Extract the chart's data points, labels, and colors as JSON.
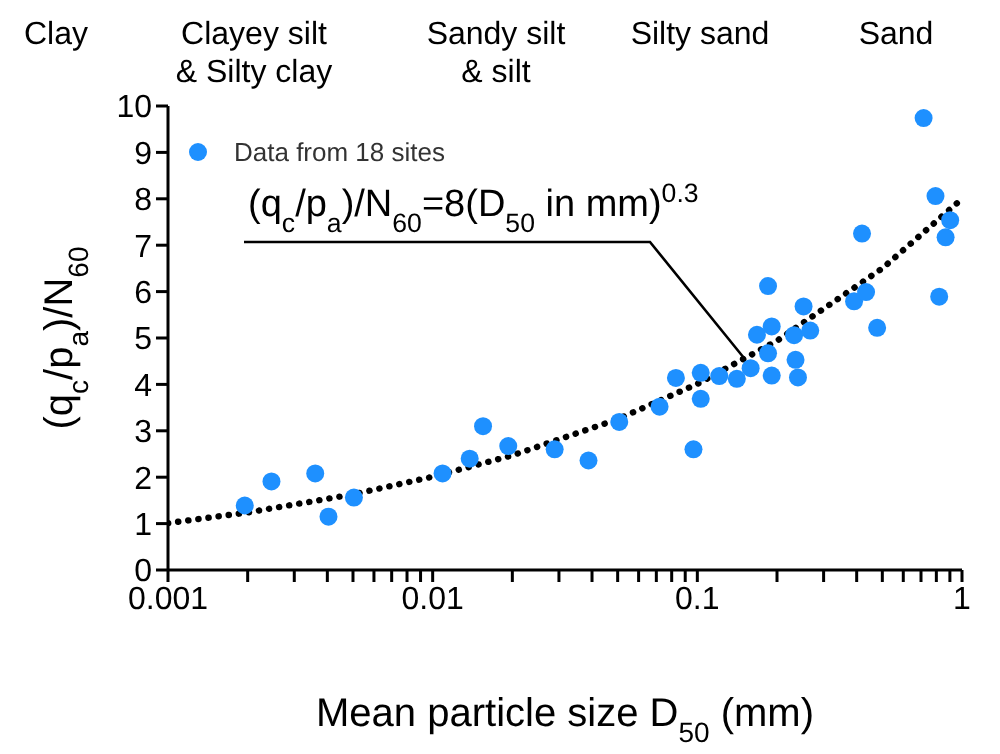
{
  "chart_data": {
    "type": "scatter",
    "xlabel": "Mean particle size D$_{50}$ (mm)",
    "ylabel": "(q$_{c}$/p$_{a}$)/N$_{60}$",
    "log": "x",
    "legend": "top left",
    "grid": false,
    "xlim": [
      0.001,
      1
    ],
    "ylim": [
      0,
      10
    ],
    "xticks": [
      0.001,
      {
        "value": 0.002,
        "label": null
      },
      {
        "value": 0.003,
        "label": null
      },
      {
        "value": 0.004,
        "label": null
      },
      {
        "value": 0.005,
        "label": null
      },
      {
        "value": 0.006,
        "label": null
      },
      {
        "value": 0.007,
        "label": null
      },
      {
        "value": 0.008,
        "label": null
      },
      {
        "value": 0.009,
        "label": null
      },
      0.01,
      {
        "value": 0.02,
        "label": null
      },
      {
        "value": 0.03,
        "label": null
      },
      {
        "value": 0.04,
        "label": null
      },
      {
        "value": 0.05,
        "label": null
      },
      {
        "value": 0.06,
        "label": null
      },
      {
        "value": 0.07,
        "label": null
      },
      {
        "value": 0.08,
        "label": null
      },
      {
        "value": 0.09,
        "label": null
      },
      0.1,
      {
        "value": 0.2,
        "label": null
      },
      {
        "value": 0.3,
        "label": null
      },
      {
        "value": 0.4,
        "label": null
      },
      {
        "value": 0.5,
        "label": null
      },
      {
        "value": 0.6,
        "label": null
      },
      {
        "value": 0.7,
        "label": null
      },
      {
        "value": 0.8,
        "label": null
      },
      {
        "value": 0.9,
        "label": null
      },
      1
    ],
    "yticks": [
      0,
      1,
      2,
      3,
      4,
      5,
      6,
      7,
      8,
      9,
      10
    ],
    "series": [
      {
        "name": "Data from 18 sites",
        "marker": "circle",
        "color": "#1e90ff",
        "x": [
          0.00195,
          0.00246,
          0.0036,
          0.00404,
          0.00504,
          0.0109,
          0.0138,
          0.0155,
          0.0193,
          0.0289,
          0.0388,
          0.0507,
          0.072,
          0.083,
          0.0967,
          0.103,
          0.103,
          0.121,
          0.141,
          0.159,
          0.168,
          0.185,
          0.191,
          0.185,
          0.191,
          0.232,
          0.252,
          0.235,
          0.24,
          0.267,
          0.391,
          0.419,
          0.434,
          0.478,
          0.716,
          0.794,
          0.82,
          0.867,
          0.902
        ],
        "values": [
          1.39,
          1.91,
          2.08,
          1.15,
          1.56,
          2.08,
          2.4,
          3.1,
          2.67,
          2.6,
          2.36,
          3.19,
          3.52,
          4.14,
          2.6,
          4.25,
          3.69,
          4.18,
          4.12,
          4.35,
          5.07,
          6.12,
          5.25,
          4.67,
          4.19,
          5.06,
          5.68,
          4.53,
          4.15,
          5.16,
          5.79,
          7.25,
          5.99,
          5.22,
          9.74,
          8.06,
          5.89,
          7.17,
          7.54
        ]
      },
      {
        "type": "line",
        "marker": "none",
        "line_style": "dotted",
        "color": "#000000",
        "x": [
          0.001,
          0.002,
          0.005,
          0.01,
          0.02,
          0.05,
          0.1,
          0.2,
          0.5,
          1
        ],
        "values": [
          1.01,
          1.24,
          1.63,
          2.01,
          2.47,
          3.25,
          4.01,
          4.94,
          6.5,
          8
        ]
      }
    ],
    "annotations": [
      "Clay",
      "Clayey silt\n& Silty clay",
      "Sandy silt\n& silt",
      "Silty sand",
      "Sand",
      "(q$_{c}$/p$_{a}$)/N$_{60}$=8(D$_{50}$ in mm)$^{0.3}$"
    ]
  }
}
